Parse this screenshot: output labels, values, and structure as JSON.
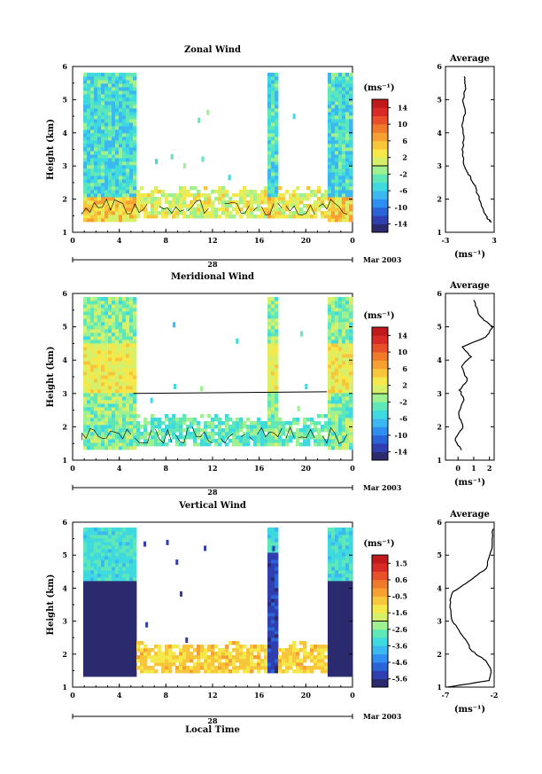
{
  "chart_data": [
    {
      "type": "heatmap",
      "title": "Zonal Wind",
      "ylabel": "Height (km)",
      "xlabel": "",
      "date_label": "Mar 2003",
      "day_label": "28",
      "x_ticks": [
        "0",
        "4",
        "8",
        "12",
        "16",
        "20",
        "0"
      ],
      "y_ticks": [
        "1",
        "2",
        "3",
        "4",
        "5",
        "6"
      ],
      "ylim": [
        1,
        6
      ],
      "xlim": [
        0,
        24
      ],
      "colorbar": {
        "unit": "(ms⁻¹)",
        "ticks": [
          "14",
          "10",
          "6",
          "2",
          "-2",
          "-6",
          "-10",
          "-14"
        ],
        "range": [
          -16,
          16
        ]
      },
      "profile": {
        "title": "Average",
        "unit": "(ms⁻¹)",
        "x_ticks": [
          "-3",
          "3"
        ],
        "xlim": [
          -3,
          3
        ],
        "y_ticks": [
          "1",
          "2",
          "3",
          "4",
          "5",
          "6"
        ],
        "points": [
          [
            2.7,
            1.3
          ],
          [
            2.2,
            1.4
          ],
          [
            1.8,
            1.6
          ],
          [
            1.2,
            2.0
          ],
          [
            0.6,
            2.4
          ],
          [
            0.0,
            2.7
          ],
          [
            -0.5,
            2.9
          ],
          [
            -0.8,
            3.1
          ],
          [
            -0.9,
            3.5
          ],
          [
            -0.7,
            3.9
          ],
          [
            -0.9,
            4.2
          ],
          [
            -0.6,
            4.6
          ],
          [
            -0.8,
            5.0
          ],
          [
            -0.5,
            5.4
          ],
          [
            -0.7,
            5.7
          ]
        ]
      }
    },
    {
      "type": "heatmap",
      "title": "Meridional Wind",
      "ylabel": "Height (km)",
      "xlabel": "",
      "date_label": "Mar 2003",
      "day_label": "28",
      "x_ticks": [
        "0",
        "4",
        "8",
        "12",
        "16",
        "20",
        "0"
      ],
      "y_ticks": [
        "1",
        "2",
        "3",
        "4",
        "5",
        "6"
      ],
      "ylim": [
        1,
        6
      ],
      "xlim": [
        0,
        24
      ],
      "colorbar": {
        "unit": "(ms⁻¹)",
        "ticks": [
          "14",
          "10",
          "6",
          "2",
          "-2",
          "-6",
          "-10",
          "-14"
        ],
        "range": [
          -16,
          16
        ]
      },
      "profile": {
        "title": "Average",
        "unit": "(ms⁻¹)",
        "x_ticks": [
          "0",
          "1",
          "2"
        ],
        "xlim": [
          -0.8,
          2.3
        ],
        "y_ticks": [
          "1",
          "2",
          "3",
          "4",
          "5",
          "6"
        ],
        "points": [
          [
            0.2,
            1.3
          ],
          [
            -0.2,
            1.6
          ],
          [
            0.3,
            2.0
          ],
          [
            0.0,
            2.4
          ],
          [
            0.4,
            2.8
          ],
          [
            0.1,
            3.1
          ],
          [
            0.6,
            3.4
          ],
          [
            0.2,
            3.8
          ],
          [
            0.8,
            4.1
          ],
          [
            0.3,
            4.4
          ],
          [
            1.8,
            4.7
          ],
          [
            2.2,
            5.0
          ],
          [
            1.4,
            5.3
          ],
          [
            1.0,
            5.8
          ]
        ]
      }
    },
    {
      "type": "heatmap",
      "title": "Vertical Wind",
      "ylabel": "Height (km)",
      "xlabel": "Local Time",
      "date_label": "Mar 2003",
      "day_label": "28",
      "x_ticks": [
        "0",
        "4",
        "8",
        "12",
        "16",
        "20",
        "0"
      ],
      "y_ticks": [
        "1",
        "2",
        "3",
        "4",
        "5",
        "6"
      ],
      "ylim": [
        1,
        6
      ],
      "xlim": [
        0,
        24
      ],
      "colorbar": {
        "unit": "(ms⁻¹)",
        "ticks": [
          "1.5",
          "0.6",
          "-0.5",
          "-1.6",
          "-2.6",
          "-3.6",
          "-4.6",
          "-5.6"
        ],
        "range": [
          -6.0,
          2.0
        ]
      },
      "profile": {
        "title": "Average",
        "unit": "(ms⁻¹)",
        "x_ticks": [
          "-7",
          "-2"
        ],
        "xlim": [
          -7,
          -2
        ],
        "y_ticks": [
          "1",
          "2",
          "3",
          "4",
          "5",
          "6"
        ],
        "points": [
          [
            -6.8,
            1.0
          ],
          [
            -2.5,
            1.2
          ],
          [
            -2.3,
            1.5
          ],
          [
            -2.9,
            1.8
          ],
          [
            -4.3,
            2.1
          ],
          [
            -5.3,
            2.6
          ],
          [
            -6.3,
            3.0
          ],
          [
            -6.6,
            3.5
          ],
          [
            -6.2,
            3.9
          ],
          [
            -4.6,
            4.2
          ],
          [
            -2.8,
            4.6
          ],
          [
            -2.3,
            5.2
          ],
          [
            -2.1,
            5.8
          ]
        ]
      }
    }
  ]
}
